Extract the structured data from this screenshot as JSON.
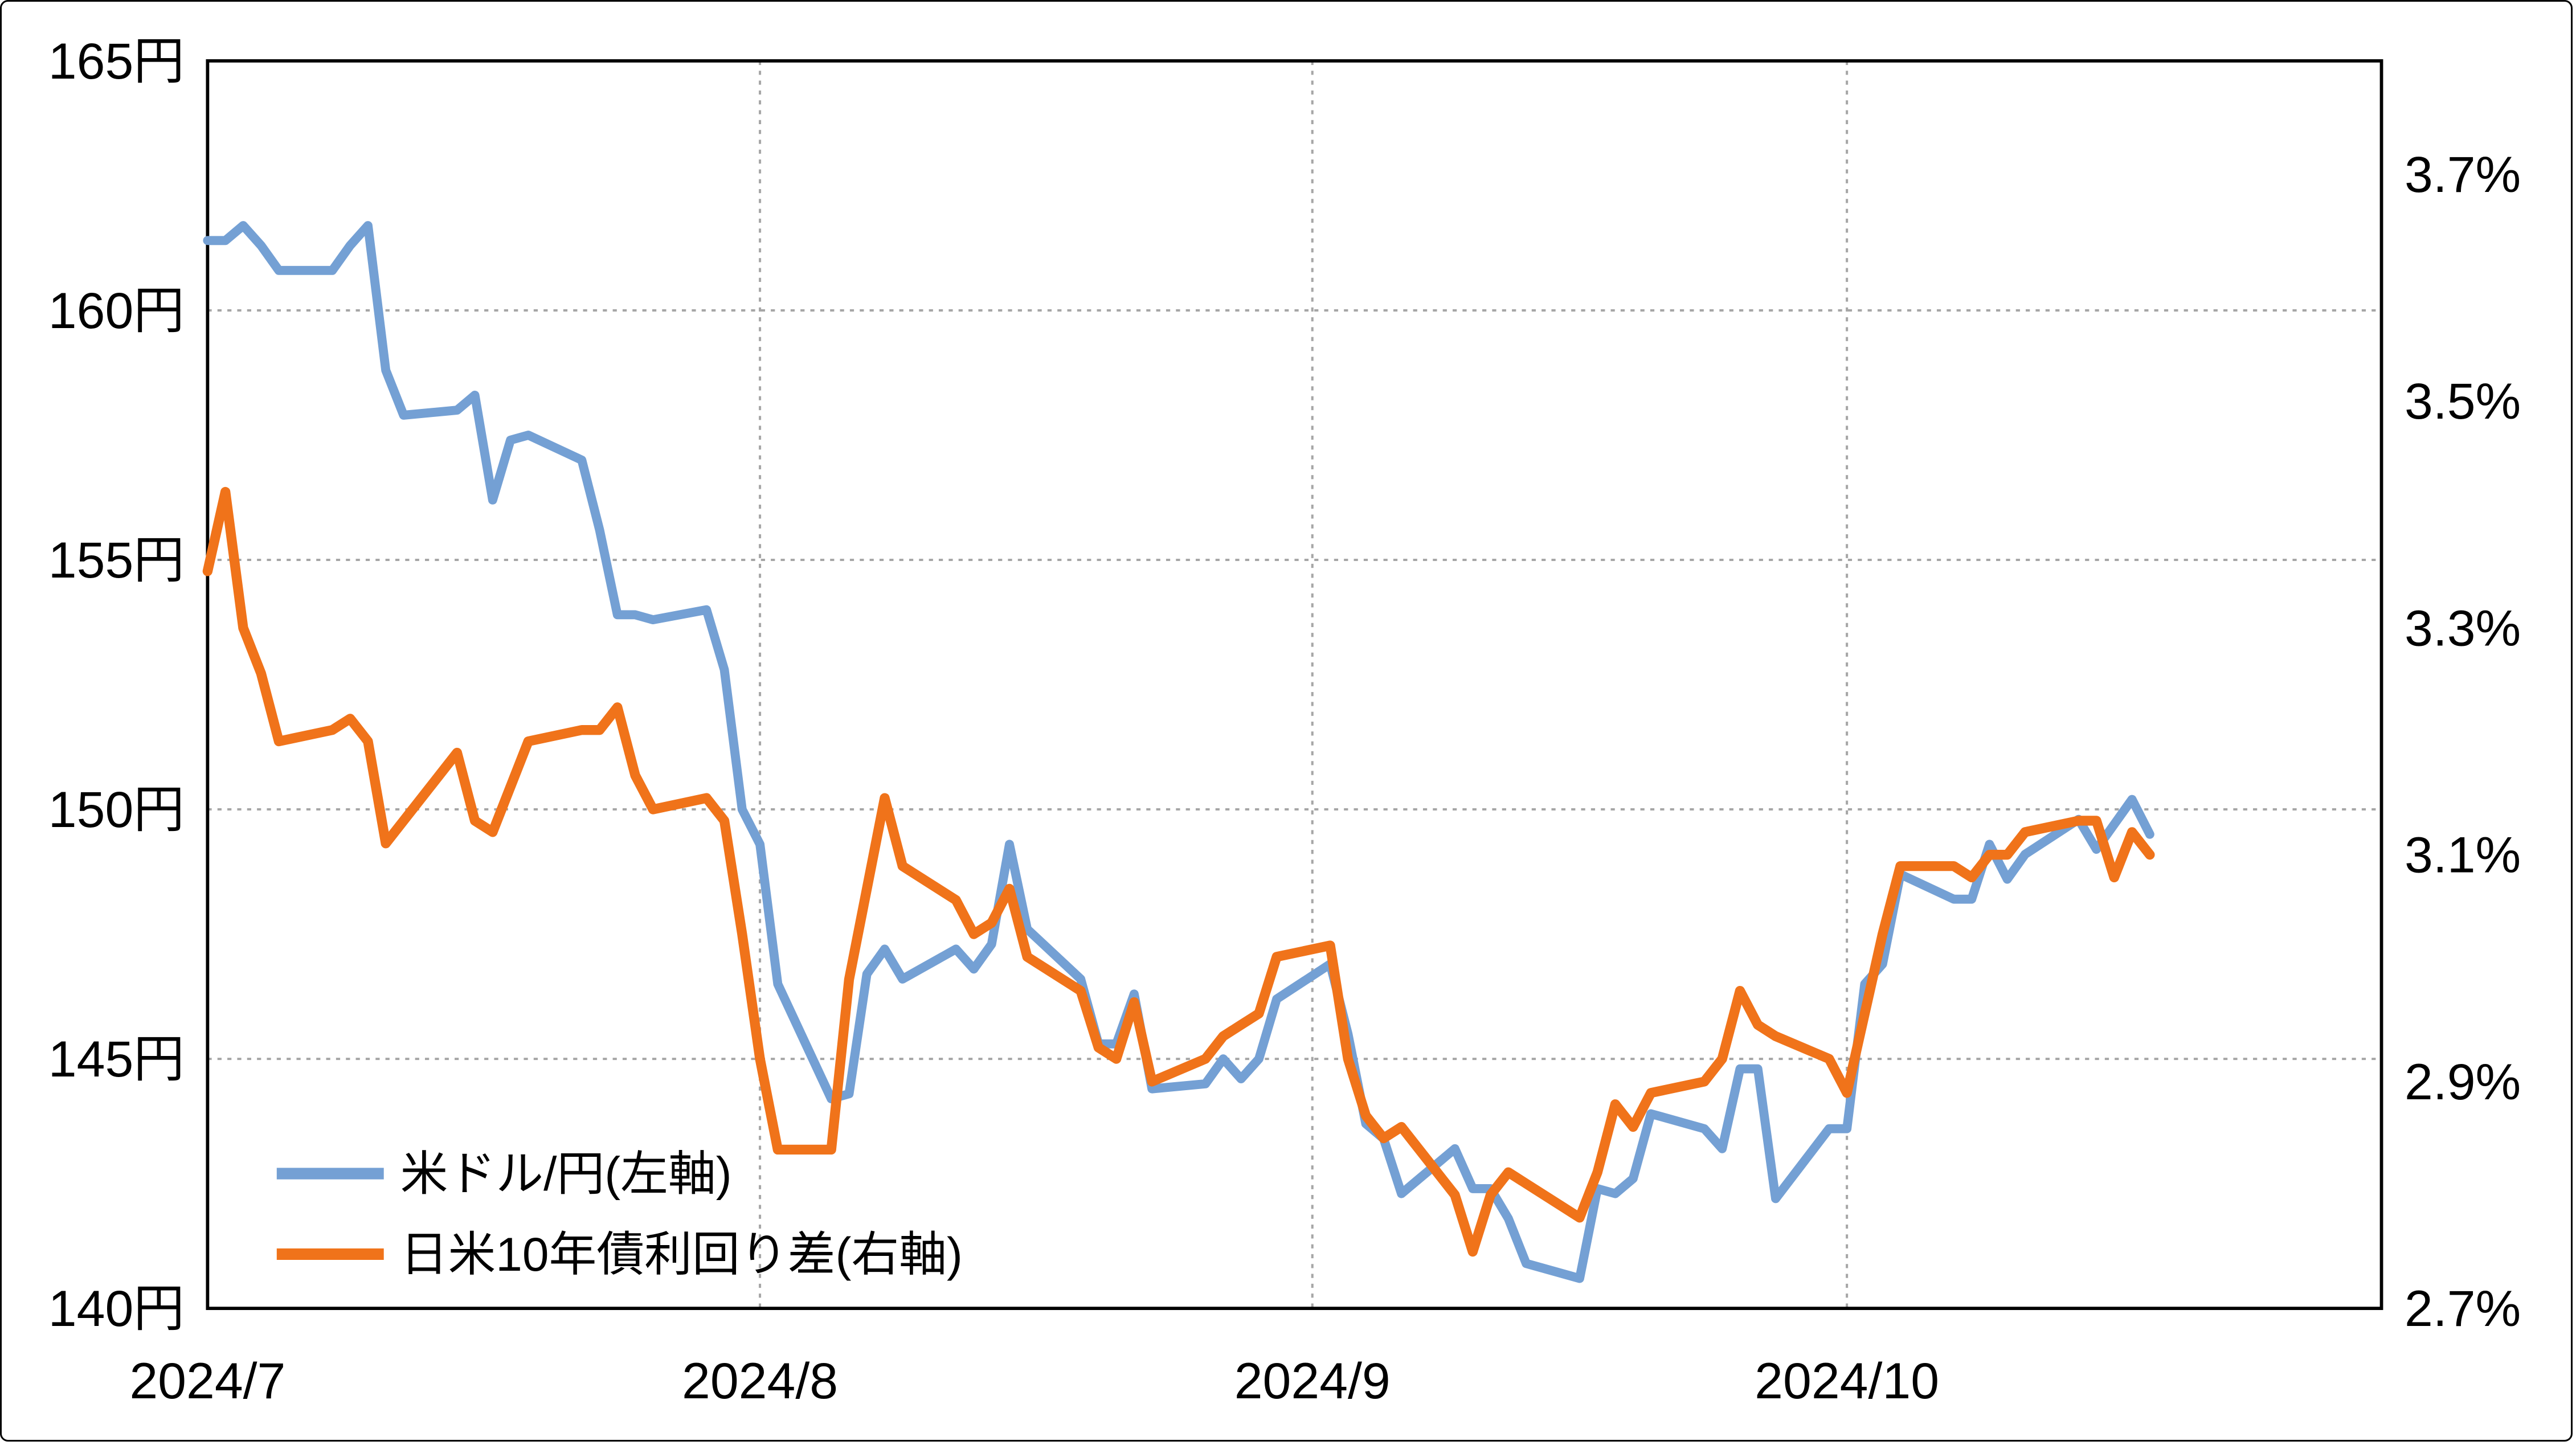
{
  "chart_data": {
    "type": "line",
    "title": "",
    "x_domain": {
      "start": "2024-07-01",
      "end": "2024-10-31"
    },
    "x": [
      "2024-07-01",
      "2024-07-02",
      "2024-07-03",
      "2024-07-04",
      "2024-07-05",
      "2024-07-08",
      "2024-07-09",
      "2024-07-10",
      "2024-07-11",
      "2024-07-12",
      "2024-07-15",
      "2024-07-16",
      "2024-07-17",
      "2024-07-18",
      "2024-07-19",
      "2024-07-22",
      "2024-07-23",
      "2024-07-24",
      "2024-07-25",
      "2024-07-26",
      "2024-07-29",
      "2024-07-30",
      "2024-07-31",
      "2024-08-01",
      "2024-08-02",
      "2024-08-05",
      "2024-08-06",
      "2024-08-07",
      "2024-08-08",
      "2024-08-09",
      "2024-08-12",
      "2024-08-13",
      "2024-08-14",
      "2024-08-15",
      "2024-08-16",
      "2024-08-19",
      "2024-08-20",
      "2024-08-21",
      "2024-08-22",
      "2024-08-23",
      "2024-08-26",
      "2024-08-27",
      "2024-08-28",
      "2024-08-29",
      "2024-08-30",
      "2024-09-02",
      "2024-09-03",
      "2024-09-04",
      "2024-09-05",
      "2024-09-06",
      "2024-09-09",
      "2024-09-10",
      "2024-09-11",
      "2024-09-12",
      "2024-09-13",
      "2024-09-16",
      "2024-09-17",
      "2024-09-18",
      "2024-09-19",
      "2024-09-20",
      "2024-09-23",
      "2024-09-24",
      "2024-09-25",
      "2024-09-26",
      "2024-09-27",
      "2024-09-30",
      "2024-10-01",
      "2024-10-02",
      "2024-10-03",
      "2024-10-04",
      "2024-10-07",
      "2024-10-08",
      "2024-10-09",
      "2024-10-10",
      "2024-10-11",
      "2024-10-14",
      "2024-10-15",
      "2024-10-16",
      "2024-10-17",
      "2024-10-18"
    ],
    "series": [
      {
        "name": "米ドル/円(左軸)",
        "axis": "left",
        "color": "#74A0D4",
        "stroke_width": 5.5,
        "values": [
          161.4,
          161.4,
          161.7,
          161.3,
          160.8,
          160.8,
          161.3,
          161.7,
          158.8,
          157.9,
          158.0,
          158.3,
          156.2,
          157.4,
          157.5,
          157.0,
          155.6,
          153.9,
          153.9,
          153.8,
          154.0,
          152.8,
          150.0,
          149.3,
          146.5,
          144.2,
          144.3,
          146.7,
          147.2,
          146.6,
          147.2,
          146.8,
          147.3,
          149.3,
          147.6,
          146.6,
          145.3,
          145.3,
          146.3,
          144.4,
          144.5,
          145.0,
          144.6,
          145.0,
          146.2,
          146.9,
          145.5,
          143.7,
          143.4,
          142.3,
          143.2,
          142.4,
          142.4,
          141.8,
          140.9,
          140.6,
          142.4,
          142.3,
          142.6,
          143.9,
          143.6,
          143.2,
          144.8,
          144.8,
          142.2,
          143.6,
          143.6,
          146.5,
          146.9,
          148.7,
          148.2,
          148.2,
          149.3,
          148.6,
          149.1,
          149.8,
          149.2,
          149.7,
          150.2,
          149.5
        ]
      },
      {
        "name": "日米10年債利回り差(右軸)",
        "axis": "right",
        "color": "#F0731A",
        "stroke_width": 6,
        "values": [
          3.35,
          3.42,
          3.3,
          3.26,
          3.2,
          3.21,
          3.22,
          3.2,
          3.11,
          3.13,
          3.19,
          3.13,
          3.12,
          3.16,
          3.2,
          3.21,
          3.21,
          3.23,
          3.17,
          3.14,
          3.15,
          3.13,
          3.03,
          2.92,
          2.84,
          2.84,
          2.99,
          3.07,
          3.15,
          3.09,
          3.06,
          3.03,
          3.04,
          3.07,
          3.01,
          2.98,
          2.93,
          2.92,
          2.97,
          2.9,
          2.92,
          2.94,
          2.95,
          2.96,
          3.01,
          3.02,
          2.92,
          2.87,
          2.85,
          2.86,
          2.8,
          2.75,
          2.8,
          2.82,
          2.81,
          2.78,
          2.82,
          2.88,
          2.86,
          2.89,
          2.9,
          2.92,
          2.98,
          2.95,
          2.94,
          2.92,
          2.89,
          2.96,
          3.03,
          3.09,
          3.09,
          3.08,
          3.1,
          3.1,
          3.12,
          3.13,
          3.13,
          3.08,
          3.12,
          3.1
        ]
      }
    ],
    "axes": {
      "left": {
        "min": 140,
        "max": 165,
        "ticks": [
          {
            "value": 140,
            "label": "140円"
          },
          {
            "value": 145,
            "label": "145円"
          },
          {
            "value": 150,
            "label": "150円"
          },
          {
            "value": 155,
            "label": "155円"
          },
          {
            "value": 160,
            "label": "160円"
          },
          {
            "value": 165,
            "label": "165円"
          }
        ]
      },
      "right": {
        "min": 2.7,
        "max": 3.8,
        "ticks": [
          {
            "value": 2.7,
            "label": "2.7%"
          },
          {
            "value": 2.9,
            "label": "2.9%"
          },
          {
            "value": 3.1,
            "label": "3.1%"
          },
          {
            "value": 3.3,
            "label": "3.3%"
          },
          {
            "value": 3.5,
            "label": "3.5%"
          },
          {
            "value": 3.7,
            "label": "3.7%"
          }
        ]
      }
    },
    "x_ticks": [
      {
        "date": "2024-07-01",
        "label": "2024/7"
      },
      {
        "date": "2024-08-01",
        "label": "2024/8"
      },
      {
        "date": "2024-09-01",
        "label": "2024/9"
      },
      {
        "date": "2024-10-01",
        "label": "2024/10"
      }
    ],
    "grid_month_lines": [
      "2024-08-01",
      "2024-09-01",
      "2024-10-01"
    ],
    "legend_position": "inside-bottom-left",
    "grid_color": "#a6a6a6",
    "border_color": "#000000"
  }
}
